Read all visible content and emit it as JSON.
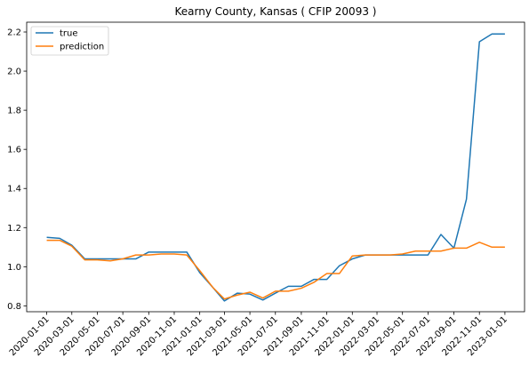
{
  "chart_data": {
    "type": "line",
    "title": "Kearny County, Kansas ( CFIP 20093 )",
    "xlabel": "",
    "ylabel": "",
    "x": [
      "2020-01-01",
      "2020-02-01",
      "2020-03-01",
      "2020-04-01",
      "2020-05-01",
      "2020-06-01",
      "2020-07-01",
      "2020-08-01",
      "2020-09-01",
      "2020-10-01",
      "2020-11-01",
      "2020-12-01",
      "2021-01-01",
      "2021-02-01",
      "2021-03-01",
      "2021-04-01",
      "2021-05-01",
      "2021-06-01",
      "2021-07-01",
      "2021-08-01",
      "2021-09-01",
      "2021-10-01",
      "2021-11-01",
      "2021-12-01",
      "2022-01-01",
      "2022-02-01",
      "2022-03-01",
      "2022-04-01",
      "2022-05-01",
      "2022-06-01",
      "2022-07-01",
      "2022-08-01",
      "2022-09-01",
      "2022-10-01",
      "2022-11-01",
      "2022-12-01",
      "2023-01-01"
    ],
    "xticks": [
      "2020-01-01",
      "2020-03-01",
      "2020-05-01",
      "2020-07-01",
      "2020-09-01",
      "2020-11-01",
      "2021-01-01",
      "2021-03-01",
      "2021-05-01",
      "2021-07-01",
      "2021-09-01",
      "2021-11-01",
      "2022-01-01",
      "2022-03-01",
      "2022-05-01",
      "2022-07-01",
      "2022-09-01",
      "2022-11-01",
      "2023-01-01"
    ],
    "xlim": [
      "2019-11-14",
      "2023-02-17"
    ],
    "ylim": [
      0.77,
      2.25
    ],
    "yticks": [
      0.8,
      1.0,
      1.2,
      1.4,
      1.6,
      1.8,
      2.0,
      2.2
    ],
    "ytick_labels": [
      "0.8",
      "1.0",
      "1.2",
      "1.4",
      "1.6",
      "1.8",
      "2.0",
      "2.2"
    ],
    "grid": false,
    "legend_position": "top-left",
    "series": [
      {
        "name": "true",
        "color": "#1f77b4",
        "values": [
          1.15,
          1.145,
          1.11,
          1.04,
          1.04,
          1.04,
          1.04,
          1.04,
          1.075,
          1.075,
          1.075,
          1.075,
          0.97,
          0.895,
          0.825,
          0.865,
          0.86,
          0.83,
          0.865,
          0.9,
          0.9,
          0.935,
          0.935,
          1.005,
          1.04,
          1.06,
          1.06,
          1.06,
          1.06,
          1.06,
          1.06,
          1.165,
          1.095,
          1.345,
          2.15,
          2.19,
          2.19
        ]
      },
      {
        "name": "prediction",
        "color": "#ff7f0e",
        "values": [
          1.135,
          1.135,
          1.105,
          1.035,
          1.035,
          1.03,
          1.04,
          1.06,
          1.06,
          1.065,
          1.065,
          1.06,
          0.98,
          0.895,
          0.835,
          0.855,
          0.87,
          0.84,
          0.875,
          0.875,
          0.89,
          0.92,
          0.965,
          0.965,
          1.055,
          1.06,
          1.06,
          1.06,
          1.065,
          1.08,
          1.08,
          1.08,
          1.095,
          1.095,
          1.125,
          1.1,
          1.1
        ]
      }
    ]
  }
}
